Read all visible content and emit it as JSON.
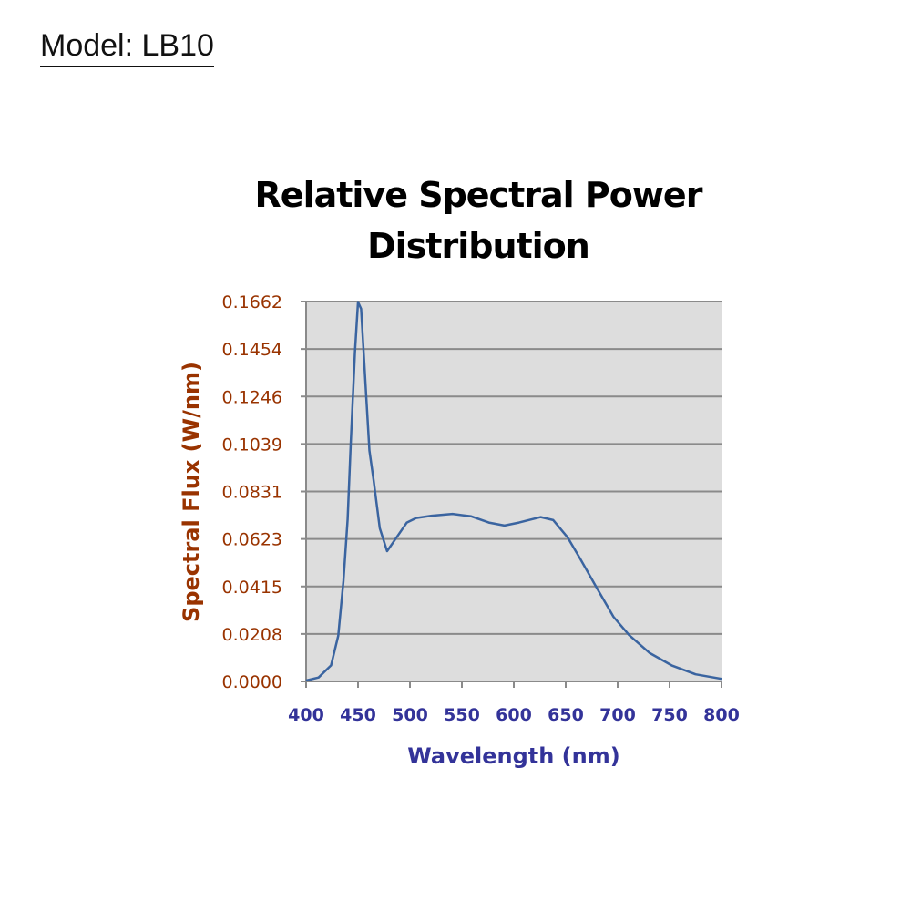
{
  "model_label": "Model: LB10",
  "chart_data": {
    "type": "line",
    "title": "Relative Spectral Power Distribution",
    "xlabel": "Wavelength (nm)",
    "ylabel": "Spectral Flux (W/nm)",
    "xlim": [
      400,
      800
    ],
    "ylim": [
      0,
      0.1662
    ],
    "x_ticks": [
      "400",
      "450",
      "500",
      "550",
      "600",
      "650",
      "700",
      "750",
      "800"
    ],
    "y_ticks": [
      "0.0000",
      "0.0208",
      "0.0415",
      "0.0623",
      "0.0831",
      "0.1039",
      "0.1246",
      "0.1454",
      "0.1662"
    ],
    "grid": true,
    "plot_background": "#dddddd",
    "colors": {
      "line": "#3a64a0",
      "y_ticks": "#993300",
      "x_ticks": "#333399",
      "ylabel": "#993300",
      "xlabel": "#333399"
    },
    "series": [
      {
        "x": [
          400,
          412,
          424,
          431,
          436,
          440,
          443,
          447,
          450,
          453,
          458,
          461,
          465,
          471,
          478,
          485,
          497,
          506,
          521,
          541,
          559,
          576,
          591,
          605,
          626,
          638,
          652,
          664,
          679,
          696,
          711,
          731,
          752,
          775,
          800
        ],
        "y": [
          0.0004,
          0.0017,
          0.007,
          0.02,
          0.044,
          0.071,
          0.104,
          0.144,
          0.166,
          0.163,
          0.124,
          0.101,
          0.088,
          0.067,
          0.057,
          0.0616,
          0.0695,
          0.0715,
          0.0725,
          0.0733,
          0.0722,
          0.0695,
          0.0682,
          0.0695,
          0.0719,
          0.0706,
          0.0629,
          0.0536,
          0.0416,
          0.0283,
          0.0203,
          0.0124,
          0.007,
          0.0031,
          0.0011
        ]
      }
    ]
  }
}
